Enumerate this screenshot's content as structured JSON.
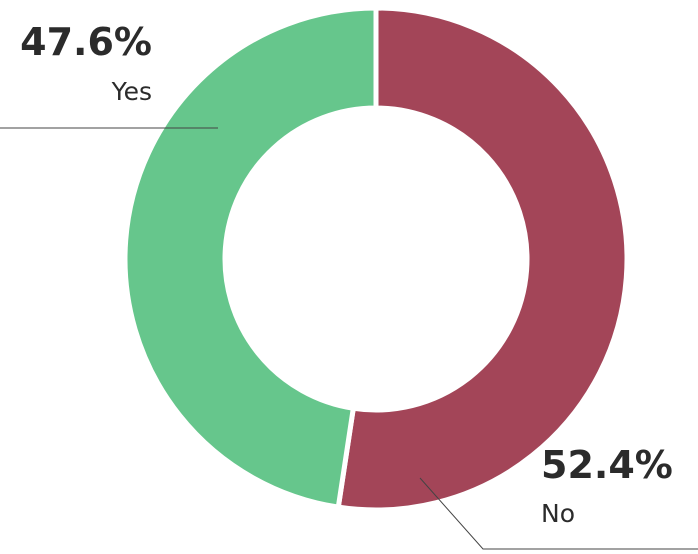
{
  "chart_data": {
    "type": "donut",
    "categories": [
      "No",
      "Yes"
    ],
    "values": [
      52.4,
      47.6
    ],
    "value_labels": [
      "52.4%",
      "47.6%"
    ],
    "colors": [
      "#a34558",
      "#66c68c"
    ]
  }
}
